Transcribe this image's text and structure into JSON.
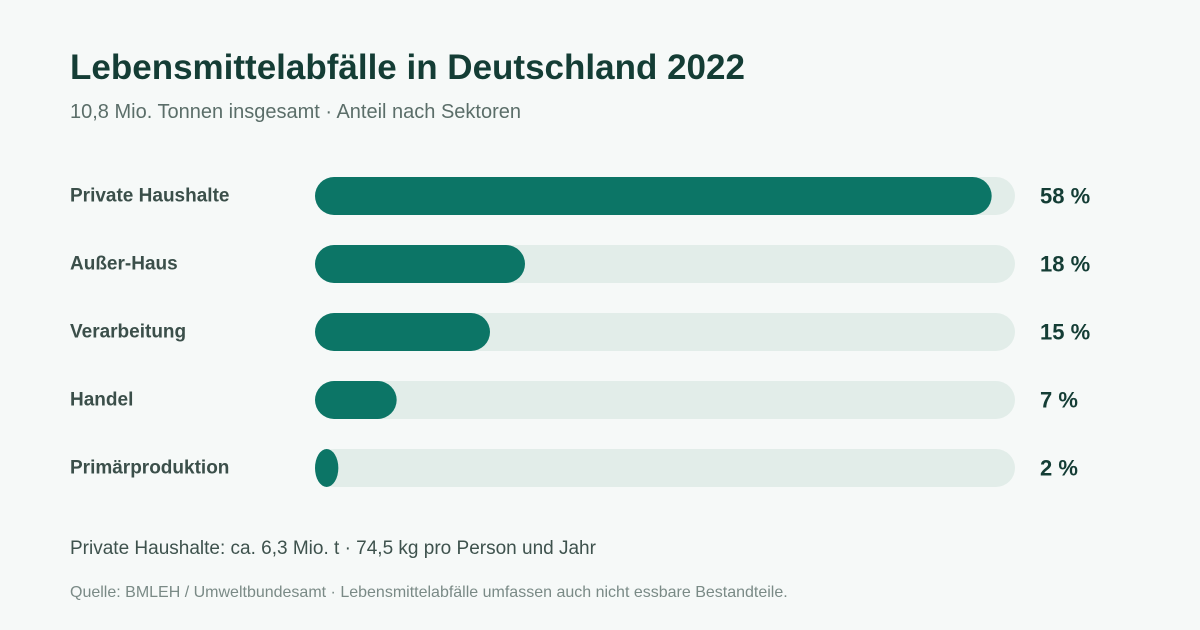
{
  "chart_data": {
    "type": "bar",
    "orientation": "horizontal",
    "title": "Lebensmittelabfälle in Deutschland 2022",
    "subtitle": "10,8 Mio. Tonnen insgesamt · Anteil nach Sektoren",
    "categories": [
      "Private Haushalte",
      "Außer-Haus",
      "Verarbeitung",
      "Handel",
      "Primärproduktion"
    ],
    "values": [
      58,
      18,
      15,
      7,
      2
    ],
    "value_labels": [
      "58 %",
      "18 %",
      "15 %",
      "7 %",
      "2 %"
    ],
    "xlim": [
      0,
      60
    ],
    "grid": false,
    "legend": "none",
    "colors": {
      "bar": "#0c7566",
      "track": "#e2ede9",
      "category_text": "#3b4f4a",
      "value_text": "#143d35"
    }
  },
  "footnote": "Private Haushalte: ca. 6,3 Mio. t · 74,5 kg pro Person und Jahr",
  "source": "Quelle: BMLEH / Umweltbundesamt · Lebensmittelabfälle umfassen auch nicht essbare Bestandteile."
}
